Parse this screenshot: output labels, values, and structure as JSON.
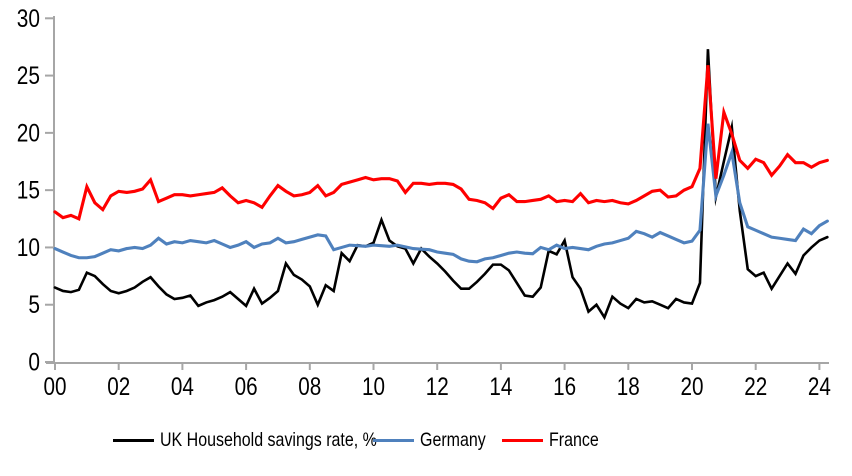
{
  "page": {
    "background": "#ffffff",
    "title": ""
  },
  "chart_data": {
    "type": "line",
    "title": "",
    "xlabel": "",
    "ylabel": "",
    "grid": false,
    "legend_position": "bottom",
    "axis_color": "#a6a6a6",
    "text_color": "#000000",
    "x_axis": {
      "start_year": 2000,
      "step_years": 0.25,
      "frequency": "quarterly",
      "tick_labels": [
        "00",
        "02",
        "04",
        "06",
        "08",
        "10",
        "12",
        "14",
        "16",
        "18",
        "20",
        "22",
        "24"
      ],
      "tick_years": [
        2000,
        2002,
        2004,
        2006,
        2008,
        2010,
        2012,
        2014,
        2016,
        2018,
        2020,
        2022,
        2024
      ],
      "xlim": [
        2000,
        2024.5
      ]
    },
    "y_axis": {
      "tick_labels": [
        "0",
        "5",
        "10",
        "15",
        "20",
        "25",
        "30"
      ],
      "ticks": [
        0,
        5,
        10,
        15,
        20,
        25,
        30
      ],
      "ylim": [
        0,
        30
      ]
    },
    "series": [
      {
        "id": "uk-household-savings-rate",
        "name": "UK Household savings rate, %",
        "color": "#000000",
        "values": [
          6.5,
          6.2,
          6.1,
          6.3,
          7.8,
          7.5,
          6.8,
          6.2,
          6.0,
          6.2,
          6.5,
          7.0,
          7.4,
          6.6,
          5.9,
          5.5,
          5.6,
          5.8,
          4.9,
          5.2,
          5.4,
          5.7,
          6.1,
          5.5,
          4.9,
          6.4,
          5.1,
          5.6,
          6.2,
          8.6,
          7.6,
          7.2,
          6.6,
          5.0,
          6.7,
          6.2,
          9.5,
          8.8,
          10.2,
          10.1,
          10.4,
          12.4,
          10.6,
          10.1,
          9.9,
          8.6,
          9.9,
          9.2,
          8.6,
          7.9,
          7.1,
          6.4,
          6.4,
          7.0,
          7.7,
          8.5,
          8.5,
          8.0,
          6.9,
          5.8,
          5.7,
          6.5,
          9.7,
          9.4,
          10.6,
          7.4,
          6.4,
          4.4,
          5.0,
          3.9,
          5.7,
          5.1,
          4.7,
          5.5,
          5.2,
          5.3,
          5.0,
          4.7,
          5.5,
          5.2,
          5.1,
          6.9,
          27.3,
          14.4,
          17.5,
          20.5,
          13.2,
          8.1,
          7.5,
          7.8,
          6.4,
          7.5,
          8.6,
          7.7,
          9.3,
          10.0,
          10.6,
          10.9
        ]
      },
      {
        "id": "germany",
        "name": "Germany",
        "color": "#4f81bd",
        "values": [
          9.9,
          9.6,
          9.3,
          9.1,
          9.1,
          9.2,
          9.5,
          9.8,
          9.7,
          9.9,
          10.0,
          9.9,
          10.2,
          10.8,
          10.3,
          10.5,
          10.4,
          10.6,
          10.5,
          10.4,
          10.6,
          10.3,
          10.0,
          10.2,
          10.5,
          10.0,
          10.3,
          10.4,
          10.8,
          10.4,
          10.5,
          10.7,
          10.9,
          11.1,
          11.0,
          9.8,
          10.0,
          10.2,
          10.15,
          10.1,
          10.2,
          10.15,
          10.1,
          10.2,
          10.05,
          9.9,
          9.85,
          9.8,
          9.6,
          9.5,
          9.4,
          9.0,
          8.8,
          8.75,
          9.0,
          9.1,
          9.3,
          9.5,
          9.6,
          9.5,
          9.45,
          10.0,
          9.8,
          10.2,
          9.9,
          10.0,
          9.9,
          9.8,
          10.1,
          10.3,
          10.4,
          10.6,
          10.8,
          11.4,
          11.2,
          10.9,
          11.3,
          11.0,
          10.7,
          10.4,
          10.55,
          11.5,
          20.8,
          14.5,
          16.3,
          18.3,
          13.9,
          11.8,
          11.5,
          11.2,
          10.9,
          10.8,
          10.7,
          10.6,
          11.6,
          11.2,
          11.9,
          12.3
        ]
      },
      {
        "id": "france",
        "name": "France",
        "color": "#ff0000",
        "values": [
          13.1,
          12.6,
          12.8,
          12.5,
          15.3,
          13.9,
          13.3,
          14.5,
          14.9,
          14.8,
          14.9,
          15.1,
          15.9,
          14.0,
          14.3,
          14.6,
          14.6,
          14.5,
          14.6,
          14.7,
          14.8,
          15.2,
          14.5,
          13.9,
          14.1,
          13.9,
          13.5,
          14.5,
          15.4,
          14.9,
          14.5,
          14.6,
          14.8,
          15.4,
          14.5,
          14.8,
          15.5,
          15.7,
          15.9,
          16.1,
          15.9,
          16.0,
          16.0,
          15.8,
          14.8,
          15.6,
          15.6,
          15.5,
          15.6,
          15.6,
          15.5,
          15.1,
          14.2,
          14.1,
          13.9,
          13.4,
          14.3,
          14.6,
          14.0,
          14.0,
          14.1,
          14.2,
          14.5,
          14.0,
          14.1,
          14.0,
          14.7,
          13.9,
          14.1,
          14.0,
          14.1,
          13.9,
          13.8,
          14.1,
          14.5,
          14.9,
          15.0,
          14.4,
          14.5,
          15.0,
          15.3,
          16.9,
          25.9,
          16.0,
          21.8,
          19.9,
          17.6,
          16.9,
          17.7,
          17.4,
          16.3,
          17.1,
          18.1,
          17.4,
          17.4,
          17.0,
          17.4,
          17.6
        ]
      }
    ]
  }
}
